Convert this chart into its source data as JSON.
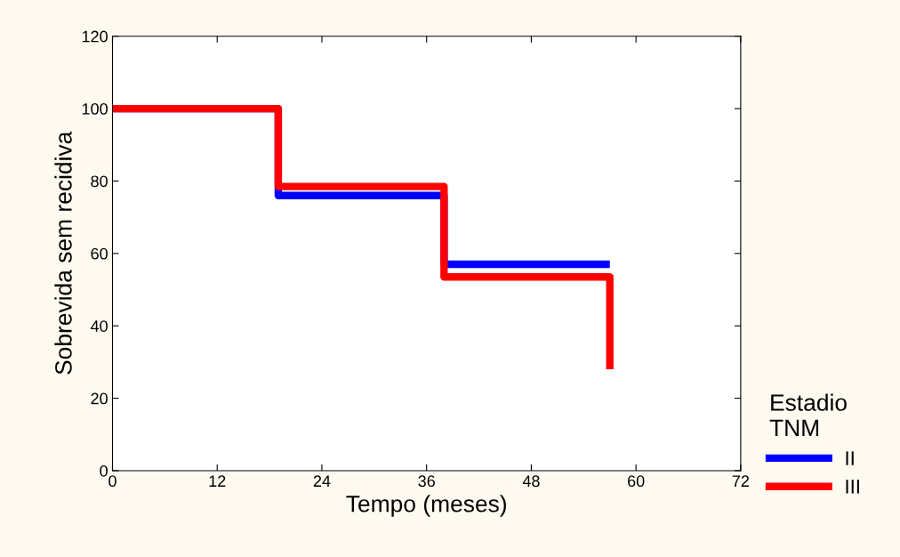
{
  "chart_data": {
    "type": "step",
    "xlabel": "Tempo (meses)",
    "ylabel": "Sobrevida sem recidiva",
    "legend_title": "Estadio\nTNM",
    "xlim": [
      0,
      72
    ],
    "xticks": [
      0,
      12,
      24,
      36,
      48,
      60,
      72
    ],
    "ylim": [
      0,
      120
    ],
    "yticks": [
      0,
      20,
      40,
      60,
      80,
      100,
      120
    ],
    "grid": false,
    "legend": "right",
    "line_style": "solid",
    "marker": "none",
    "series": [
      {
        "name": "II",
        "color": "#0000ff",
        "x": [
          0,
          19,
          38,
          57
        ],
        "values": [
          100,
          76,
          57,
          57
        ]
      },
      {
        "name": "III",
        "color": "#ff0000",
        "x": [
          0,
          19,
          38,
          57
        ],
        "values": [
          100,
          78.5,
          53.5,
          28
        ]
      }
    ]
  }
}
